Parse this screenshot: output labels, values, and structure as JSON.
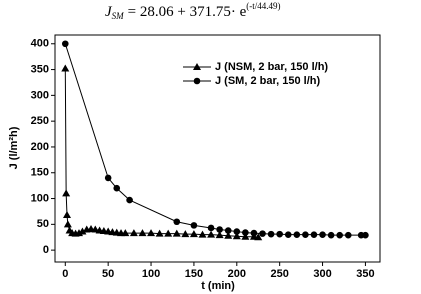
{
  "chart_data": {
    "type": "line",
    "title": {
      "main": "J",
      "sub": "SM",
      "expr": "= 28.06 + 371.75· e",
      "sup": "(-t/44.49)"
    },
    "xlabel": "t (min)",
    "ylabel": "J (l/m²h)",
    "xlim": [
      -12,
      367
    ],
    "xticks": [
      0,
      50,
      100,
      150,
      200,
      250,
      300,
      350
    ],
    "ylim": [
      -23,
      417
    ],
    "yticks": [
      0,
      50,
      100,
      150,
      200,
      250,
      300,
      350,
      400
    ],
    "legend": "upper right",
    "series": [
      {
        "name": "J (NSM, 2 bar, 150 l/h)",
        "color": "#000000",
        "marker": "triangle",
        "x": [
          0,
          1,
          2,
          3,
          5,
          8,
          12,
          16,
          20,
          25,
          30,
          35,
          40,
          45,
          50,
          55,
          60,
          65,
          70,
          80,
          90,
          100,
          110,
          120,
          130,
          140,
          150,
          160,
          170,
          180,
          190,
          200,
          210,
          220,
          225
        ],
        "values": [
          352,
          110,
          68,
          50,
          38,
          33,
          32,
          33,
          36,
          40,
          41,
          40,
          38,
          37,
          36,
          35,
          34,
          33,
          33,
          33,
          33,
          33,
          32,
          32,
          32,
          31,
          31,
          30,
          30,
          29,
          28,
          27,
          26,
          26,
          25
        ]
      },
      {
        "name": "J (SM, 2 bar, 150 l/h)",
        "color": "#000000",
        "marker": "circle",
        "x": [
          0,
          50,
          60,
          75,
          130,
          150,
          170,
          180,
          190,
          200,
          210,
          220,
          230,
          240,
          250,
          260,
          270,
          280,
          290,
          300,
          310,
          320,
          330,
          345,
          350
        ],
        "values": [
          400,
          140,
          120,
          97,
          55,
          48,
          43,
          40,
          38,
          36,
          34,
          33,
          32,
          31,
          31,
          30,
          30,
          30,
          30,
          30,
          29,
          29,
          29,
          29,
          29
        ]
      }
    ]
  }
}
